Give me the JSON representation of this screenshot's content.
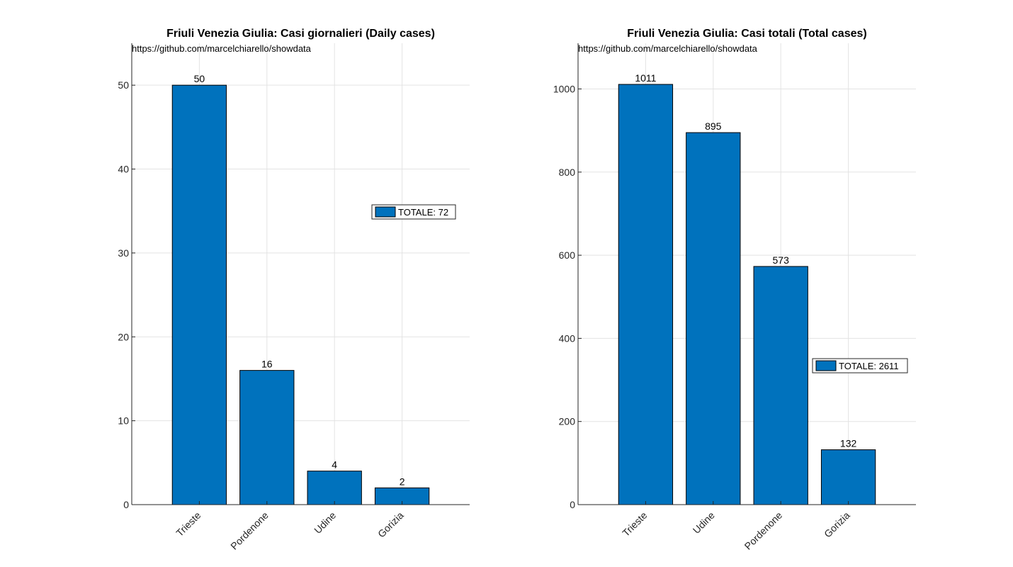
{
  "chart_data": [
    {
      "type": "bar",
      "title": "Friuli Venezia Giulia: Casi giornalieri (Daily cases)",
      "source_note": "https://github.com/marcelchiarello/showdata",
      "categories": [
        "Trieste",
        "Pordenone",
        "Udine",
        "Gorizia"
      ],
      "values": [
        50,
        16,
        4,
        2
      ],
      "data_labels": [
        "50",
        "16",
        "4",
        "2"
      ],
      "ylim": [
        0,
        55
      ],
      "yticks": [
        0,
        10,
        20,
        30,
        40,
        50
      ],
      "ytick_labels": [
        "0",
        "10",
        "20",
        "30",
        "40",
        "50"
      ],
      "grid": true,
      "legend": {
        "label": "TOTALE: 72",
        "placement": "right"
      },
      "bar_color": "#0072BD"
    },
    {
      "type": "bar",
      "title": "Friuli Venezia Giulia: Casi totali (Total cases)",
      "source_note": "https://github.com/marcelchiarello/showdata",
      "categories": [
        "Trieste",
        "Udine",
        "Pordenone",
        "Gorizia"
      ],
      "values": [
        1011,
        895,
        573,
        132
      ],
      "data_labels": [
        "1011",
        "895",
        "573",
        "132"
      ],
      "ylim": [
        0,
        1110
      ],
      "yticks": [
        0,
        200,
        400,
        600,
        800,
        1000
      ],
      "ytick_labels": [
        "0",
        "200",
        "400",
        "600",
        "800",
        "1000"
      ],
      "grid": true,
      "legend": {
        "label": "TOTALE: 2611",
        "placement": "bottom-right"
      },
      "bar_color": "#0072BD"
    }
  ]
}
